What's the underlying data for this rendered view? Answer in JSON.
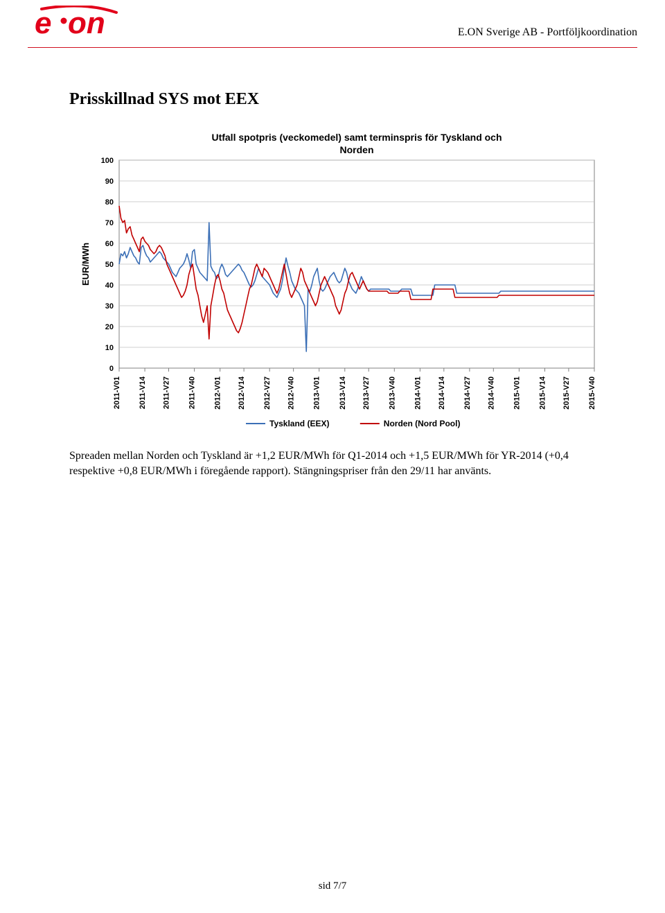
{
  "header": {
    "company_line": "E.ON Sverige AB - Portföljkoordination",
    "logo_text_primary": "e",
    "logo_text_secondary": "on",
    "logo_red": "#e2001a"
  },
  "section": {
    "title": "Prisskillnad SYS mot EEX"
  },
  "chart": {
    "type": "line",
    "title": "Utfall spotpris (veckomedel) samt terminspris för Tyskland och Norden",
    "title_fontsize": 14,
    "title_weight": "bold",
    "ylabel": "EUR/MWh",
    "label_fontsize": 13,
    "ylim": [
      0,
      100
    ],
    "ytick_step": 10,
    "yticks": [
      0,
      10,
      20,
      30,
      40,
      50,
      60,
      70,
      80,
      90,
      100
    ],
    "background_color": "#ffffff",
    "plot_border_color": "#808080",
    "grid_color": "#bfbfbf",
    "axis_font_size": 11,
    "axis_font_weight": "bold",
    "x_categories": [
      "2011-V01",
      "2011-V14",
      "2011-V27",
      "2011-V40",
      "2012-V01",
      "2012-V14",
      "2012-V27",
      "2012-V40",
      "2013-V01",
      "2013-V14",
      "2013-V27",
      "2013-V40",
      "2014-V01",
      "2014-V14",
      "2014-V27",
      "2014-V40",
      "2015-V01",
      "2015-V14",
      "2015-V27",
      "2015-V40"
    ],
    "x_points_count": 260,
    "series": [
      {
        "name": "Tyskland (EEX)",
        "color": "#3b6fb6",
        "line_width": 1.6,
        "values": [
          50,
          55,
          54,
          56,
          53,
          55,
          58,
          56,
          54,
          53,
          51,
          50,
          58,
          59,
          56,
          54,
          53,
          51,
          52,
          53,
          54,
          55,
          56,
          55,
          53,
          52,
          51,
          50,
          48,
          46,
          45,
          44,
          46,
          48,
          49,
          50,
          52,
          55,
          52,
          48,
          56,
          57,
          50,
          48,
          46,
          45,
          44,
          43,
          42,
          70,
          49,
          47,
          46,
          43,
          44,
          48,
          50,
          48,
          45,
          44,
          45,
          46,
          47,
          48,
          49,
          50,
          49,
          47,
          46,
          44,
          42,
          40,
          39,
          40,
          42,
          45,
          48,
          46,
          44,
          43,
          42,
          41,
          40,
          38,
          36,
          35,
          34,
          36,
          38,
          42,
          48,
          53,
          49,
          46,
          42,
          40,
          38,
          37,
          36,
          34,
          32,
          30,
          8,
          38,
          37,
          40,
          44,
          46,
          48,
          42,
          38,
          37,
          38,
          40,
          42,
          44,
          45,
          46,
          44,
          42,
          41,
          42,
          45,
          48,
          46,
          42,
          40,
          38,
          37,
          36,
          38,
          41,
          44,
          42,
          40,
          38,
          37,
          38,
          38,
          38,
          38,
          38,
          38,
          38,
          38,
          38,
          38,
          38,
          37,
          37,
          37,
          37,
          37,
          37,
          38,
          38,
          38,
          38,
          38,
          38,
          35,
          35,
          35,
          35,
          35,
          35,
          35,
          35,
          35,
          35,
          35,
          35,
          40,
          40,
          40,
          40,
          40,
          40,
          40,
          40,
          40,
          40,
          40,
          40,
          36,
          36,
          36,
          36,
          36,
          36,
          36,
          36,
          36,
          36,
          36,
          36,
          36,
          36,
          36,
          36,
          36,
          36,
          36,
          36,
          36,
          36,
          36,
          36,
          37,
          37,
          37,
          37,
          37,
          37,
          37,
          37,
          37,
          37,
          37,
          37,
          37,
          37,
          37,
          37,
          37,
          37,
          37,
          37,
          37,
          37,
          37,
          37,
          37,
          37,
          37,
          37,
          37,
          37,
          37,
          37,
          37,
          37,
          37,
          37,
          37,
          37,
          37,
          37,
          37,
          37,
          37,
          37,
          37,
          37,
          37,
          37,
          37,
          37,
          37,
          37,
          37,
          37
        ]
      },
      {
        "name": "Norden (Nord Pool)",
        "color": "#c00000",
        "line_width": 1.6,
        "values": [
          78,
          72,
          70,
          71,
          65,
          67,
          68,
          64,
          62,
          60,
          58,
          56,
          62,
          63,
          61,
          60,
          59,
          57,
          56,
          55,
          56,
          58,
          59,
          58,
          56,
          54,
          50,
          48,
          46,
          44,
          42,
          40,
          38,
          36,
          34,
          35,
          37,
          40,
          45,
          48,
          50,
          44,
          38,
          35,
          30,
          25,
          22,
          26,
          30,
          14,
          30,
          35,
          40,
          44,
          45,
          42,
          38,
          36,
          32,
          28,
          26,
          24,
          22,
          20,
          18,
          17,
          19,
          22,
          26,
          30,
          34,
          38,
          40,
          44,
          48,
          50,
          48,
          46,
          44,
          48,
          47,
          46,
          44,
          42,
          40,
          38,
          36,
          38,
          42,
          46,
          50,
          45,
          40,
          36,
          34,
          36,
          38,
          40,
          44,
          48,
          46,
          42,
          40,
          38,
          36,
          34,
          32,
          30,
          32,
          36,
          40,
          42,
          44,
          42,
          40,
          38,
          36,
          34,
          30,
          28,
          26,
          28,
          32,
          36,
          38,
          42,
          45,
          46,
          44,
          42,
          40,
          38,
          40,
          42,
          40,
          38,
          37,
          37,
          37,
          37,
          37,
          37,
          37,
          37,
          37,
          37,
          37,
          36,
          36,
          36,
          36,
          36,
          36,
          37,
          37,
          37,
          37,
          37,
          37,
          33,
          33,
          33,
          33,
          33,
          33,
          33,
          33,
          33,
          33,
          33,
          33,
          38,
          38,
          38,
          38,
          38,
          38,
          38,
          38,
          38,
          38,
          38,
          38,
          34,
          34,
          34,
          34,
          34,
          34,
          34,
          34,
          34,
          34,
          34,
          34,
          34,
          34,
          34,
          34,
          34,
          34,
          34,
          34,
          34,
          34,
          34,
          34,
          35,
          35,
          35,
          35,
          35,
          35,
          35,
          35,
          35,
          35,
          35,
          35,
          35,
          35,
          35,
          35,
          35,
          35,
          35,
          35,
          35,
          35,
          35,
          35,
          35,
          35,
          35,
          35,
          35,
          35,
          35,
          35,
          35,
          35,
          35,
          35,
          35,
          35,
          35,
          35,
          35,
          35,
          35,
          35,
          35,
          35,
          35,
          35,
          35,
          35,
          35,
          35,
          35,
          35
        ]
      }
    ],
    "legend": {
      "position": "bottom-center",
      "items": [
        {
          "label": "Tyskland (EEX)",
          "color": "#3b6fb6"
        },
        {
          "label": "Norden (Nord Pool)",
          "color": "#c00000"
        }
      ],
      "font_size": 12,
      "font_weight": "bold"
    }
  },
  "body": {
    "paragraph": "Spreaden mellan Norden och Tyskland är +1,2 EUR/MWh för Q1-2014 och +1,5 EUR/MWh för YR-2014 (+0,4 respektive +0,8 EUR/MWh i föregående rapport). Stängningspriser från den 29/11 har använts."
  },
  "footer": {
    "page": "sid 7/7"
  }
}
